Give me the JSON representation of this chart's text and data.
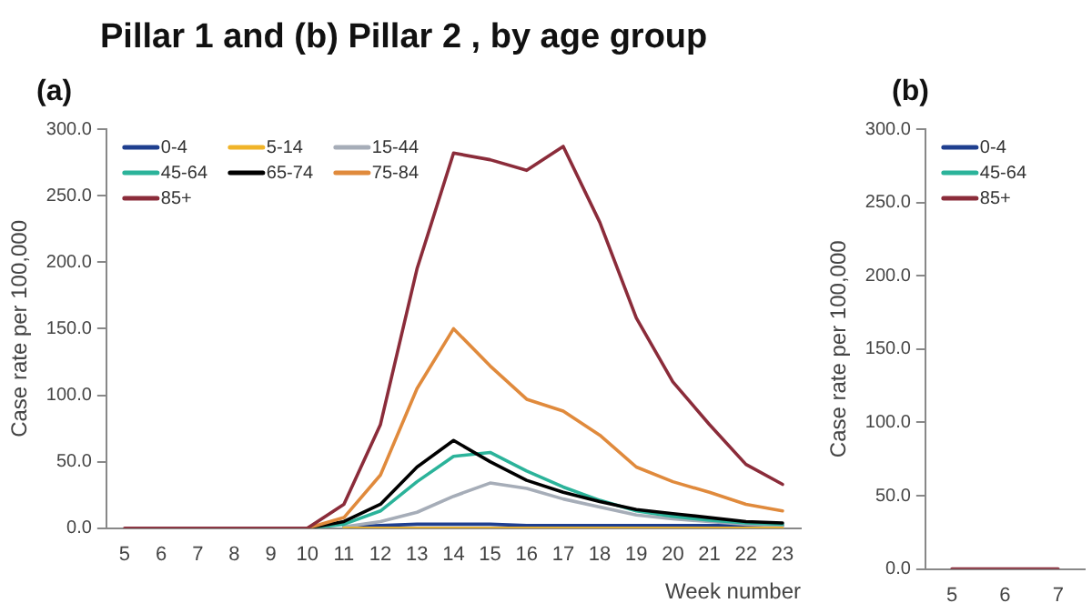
{
  "chart_data": [
    {
      "type": "line",
      "title": "Pillar 1 and (b) Pillar 2 , by age group",
      "subtitle": "(a)",
      "xlabel": "Week number",
      "ylabel": "Case rate per 100,000",
      "categories": [
        "5",
        "6",
        "7",
        "8",
        "9",
        "10",
        "11",
        "12",
        "13",
        "14",
        "15",
        "16",
        "17",
        "18",
        "19",
        "20",
        "21",
        "22",
        "23"
      ],
      "ylim": [
        0,
        300
      ],
      "yticks": [
        {
          "value": 0,
          "label": "0.0"
        },
        {
          "value": 50,
          "label": "50.0"
        },
        {
          "value": 100,
          "label": "100.0"
        },
        {
          "value": 150,
          "label": "150.0"
        },
        {
          "value": 200,
          "label": "200.0"
        },
        {
          "value": 250,
          "label": "250.0"
        },
        {
          "value": 300,
          "label": "300.0"
        }
      ],
      "grid": false,
      "legend": "top left",
      "marker": "none",
      "line_style": "solid",
      "series": [
        {
          "name": "0-4",
          "color": "#1f3f8f",
          "values": [
            null,
            null,
            null,
            null,
            null,
            null,
            1,
            2,
            3,
            3,
            3,
            2,
            2,
            2,
            2,
            2,
            2,
            2,
            2
          ]
        },
        {
          "name": "5-14",
          "color": "#f0b429",
          "values": [
            null,
            null,
            null,
            null,
            null,
            null,
            0,
            0,
            0,
            0,
            0,
            0,
            0,
            0,
            0,
            0,
            0,
            0,
            0
          ]
        },
        {
          "name": "15-44",
          "color": "#a6adb8",
          "values": [
            null,
            null,
            null,
            null,
            null,
            null,
            1,
            5,
            12,
            24,
            34,
            30,
            22,
            16,
            10,
            7,
            5,
            3,
            2
          ]
        },
        {
          "name": "45-64",
          "color": "#2bb39a",
          "values": [
            null,
            null,
            null,
            null,
            null,
            0,
            3,
            13,
            35,
            54,
            57,
            43,
            31,
            21,
            13,
            9,
            6,
            4,
            3
          ]
        },
        {
          "name": "65-74",
          "color": "#000000",
          "values": [
            null,
            null,
            null,
            null,
            null,
            0,
            5,
            18,
            46,
            66,
            50,
            36,
            27,
            20,
            14,
            11,
            8,
            5,
            4
          ]
        },
        {
          "name": "75-84",
          "color": "#e08a3c",
          "values": [
            null,
            null,
            null,
            null,
            null,
            0,
            8,
            40,
            105,
            150,
            122,
            97,
            88,
            70,
            46,
            35,
            27,
            18,
            13
          ]
        },
        {
          "name": "85+",
          "color": "#8b2c3a",
          "values": [
            0,
            0,
            0,
            0,
            0,
            0,
            18,
            78,
            195,
            282,
            277,
            269,
            287,
            230,
            158,
            110,
            78,
            48,
            33
          ]
        }
      ]
    },
    {
      "type": "line",
      "subtitle": "(b)",
      "ylabel": "Case rate per 100,000",
      "categories": [
        "5",
        "6",
        "7"
      ],
      "ylim": [
        0,
        300
      ],
      "yticks": [
        {
          "value": 0,
          "label": "0.0"
        },
        {
          "value": 50,
          "label": "50.0"
        },
        {
          "value": 100,
          "label": "100.0"
        },
        {
          "value": 150,
          "label": "150.0"
        },
        {
          "value": 200,
          "label": "200.0"
        },
        {
          "value": 250,
          "label": "250.0"
        },
        {
          "value": 300,
          "label": "300.0"
        }
      ],
      "grid": false,
      "legend": "top left",
      "marker": "none",
      "line_style": "solid",
      "series": [
        {
          "name": "0-4",
          "color": "#1f3f8f",
          "values": [
            null,
            null,
            null
          ]
        },
        {
          "name": "45-64",
          "color": "#2bb39a",
          "values": [
            null,
            null,
            null
          ]
        },
        {
          "name": "85+",
          "color": "#8b2c3a",
          "values": [
            0,
            0,
            0
          ]
        }
      ]
    }
  ]
}
